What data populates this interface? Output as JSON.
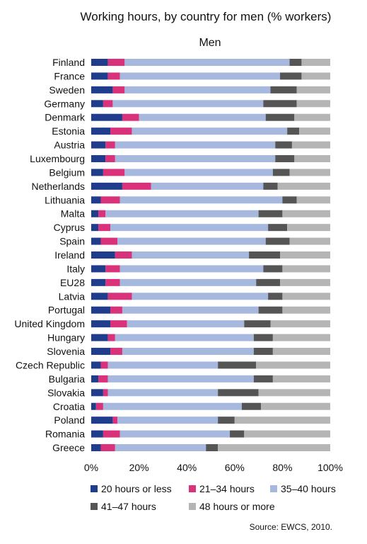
{
  "chart_data": {
    "type": "bar",
    "orientation": "horizontal",
    "stacked": "100%",
    "title": "Working hours, by country for men (% workers)",
    "subtitle": "Men",
    "source": "Source: EWCS, 2010.",
    "categories": [
      "Finland",
      "France",
      "Sweden",
      "Germany",
      "Denmark",
      "Estonia",
      "Austria",
      "Luxembourg",
      "Belgium",
      "Netherlands",
      "Lithuania",
      "Malta",
      "Cyprus",
      "Spain",
      "Ireland",
      "Italy",
      "EU28",
      "Latvia",
      "Portugal",
      "United Kingdom",
      "Hungary",
      "Slovenia",
      "Czech Republic",
      "Bulgaria",
      "Slovakia",
      "Croatia",
      "Poland",
      "Romania",
      "Greece"
    ],
    "xlim": [
      0,
      100
    ],
    "xticks": [
      "0%",
      "20%",
      "40%",
      "60%",
      "80%",
      "100%"
    ],
    "legend_position": "bottom",
    "series": [
      {
        "name": "20 hours or less",
        "color": "#1f3d8c",
        "values": [
          7,
          7,
          9,
          5,
          13,
          8,
          6,
          6,
          5,
          13,
          4,
          3,
          3,
          4,
          10,
          6,
          6,
          7,
          8,
          8,
          7,
          8,
          4,
          3,
          5,
          2,
          9,
          5,
          4
        ]
      },
      {
        "name": "21–34 hours",
        "color": "#d9317a",
        "values": [
          7,
          5,
          5,
          4,
          7,
          9,
          4,
          4,
          9,
          12,
          8,
          3,
          5,
          7,
          7,
          6,
          6,
          10,
          5,
          7,
          3,
          5,
          3,
          4,
          2,
          3,
          2,
          7,
          6
        ]
      },
      {
        "name": "35–40 hours",
        "color": "#a7b8de",
        "values": [
          69,
          67,
          61,
          63,
          53,
          65,
          67,
          67,
          62,
          47,
          68,
          64,
          66,
          62,
          49,
          60,
          57,
          57,
          57,
          49,
          58,
          55,
          46,
          61,
          46,
          58,
          42,
          46,
          38
        ]
      },
      {
        "name": "41–47 hours",
        "color": "#555555",
        "values": [
          5,
          9,
          11,
          14,
          12,
          5,
          7,
          8,
          7,
          6,
          6,
          10,
          8,
          10,
          13,
          8,
          10,
          6,
          10,
          11,
          8,
          8,
          16,
          8,
          17,
          8,
          7,
          6,
          5
        ]
      },
      {
        "name": "48 hours or more",
        "color": "#b5b5b5",
        "values": [
          12,
          12,
          14,
          14,
          15,
          13,
          16,
          15,
          17,
          22,
          14,
          20,
          18,
          17,
          21,
          20,
          21,
          20,
          20,
          25,
          24,
          24,
          31,
          24,
          30,
          29,
          40,
          36,
          47
        ]
      }
    ]
  }
}
